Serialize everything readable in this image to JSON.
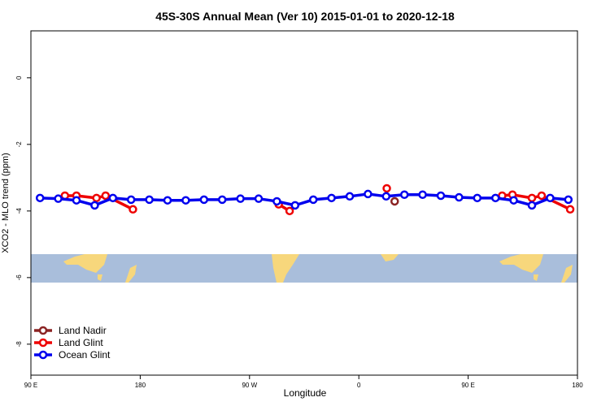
{
  "chart_data": {
    "type": "line",
    "title": "45S-30S Annual Mean (Ver 10)   2015-01-01 to 2020-12-18",
    "x_label": "Longitude",
    "y_label": "XCO2 - MLO trend (ppm)",
    "xlim": [
      90,
      540
    ],
    "ylim": [
      -8.93,
      1.41
    ],
    "xticks": [
      {
        "value": 90,
        "label": "90 E"
      },
      {
        "value": 180,
        "label": "180"
      },
      {
        "value": 270,
        "label": "90 W"
      },
      {
        "value": 360,
        "label": "0"
      },
      {
        "value": 450,
        "label": "90 E"
      },
      {
        "value": 540,
        "label": "180"
      }
    ],
    "yticks": [
      -8,
      -6,
      -4,
      -2,
      0
    ],
    "legend": "bottom-left",
    "series": [
      {
        "name": "Land Nadir",
        "color": "#8b2323",
        "x": [
          389.5
        ],
        "values": [
          -3.71
        ]
      },
      {
        "name": "Land Glint",
        "color": "#ee0000",
        "x": [
          118,
          127.5,
          144,
          151.5,
          174,
          234,
          294,
          303,
          343,
          383,
          430,
          478,
          486.5,
          502.5,
          510.5,
          534
        ],
        "values": [
          -3.54,
          -3.54,
          -3.61,
          -3.54,
          -3.95,
          null,
          -3.8,
          -4.0,
          null,
          -3.32,
          null,
          -3.54,
          -3.51,
          -3.61,
          -3.54,
          -3.95
        ]
      },
      {
        "name": "Ocean Glint",
        "color": "#0000ee",
        "x": [
          97.5,
          112.5,
          127.5,
          142.5,
          157.5,
          172.5,
          187.5,
          202.5,
          217.5,
          232.5,
          247.5,
          262.5,
          277.5,
          292.5,
          307.5,
          322.5,
          337.5,
          352.5,
          367.5,
          382.5,
          397.5,
          412.5,
          427.5,
          442.5,
          457.5,
          472.5,
          487.5,
          502.5,
          517.5,
          532.5
        ],
        "values": [
          -3.61,
          -3.63,
          -3.68,
          -3.83,
          -3.61,
          -3.66,
          -3.66,
          -3.68,
          -3.68,
          -3.66,
          -3.66,
          -3.63,
          -3.63,
          -3.71,
          -3.83,
          -3.66,
          -3.61,
          -3.56,
          -3.49,
          -3.56,
          -3.51,
          -3.51,
          -3.54,
          -3.59,
          -3.61,
          -3.61,
          -3.68,
          -3.83,
          -3.61,
          -3.66
        ]
      }
    ]
  }
}
